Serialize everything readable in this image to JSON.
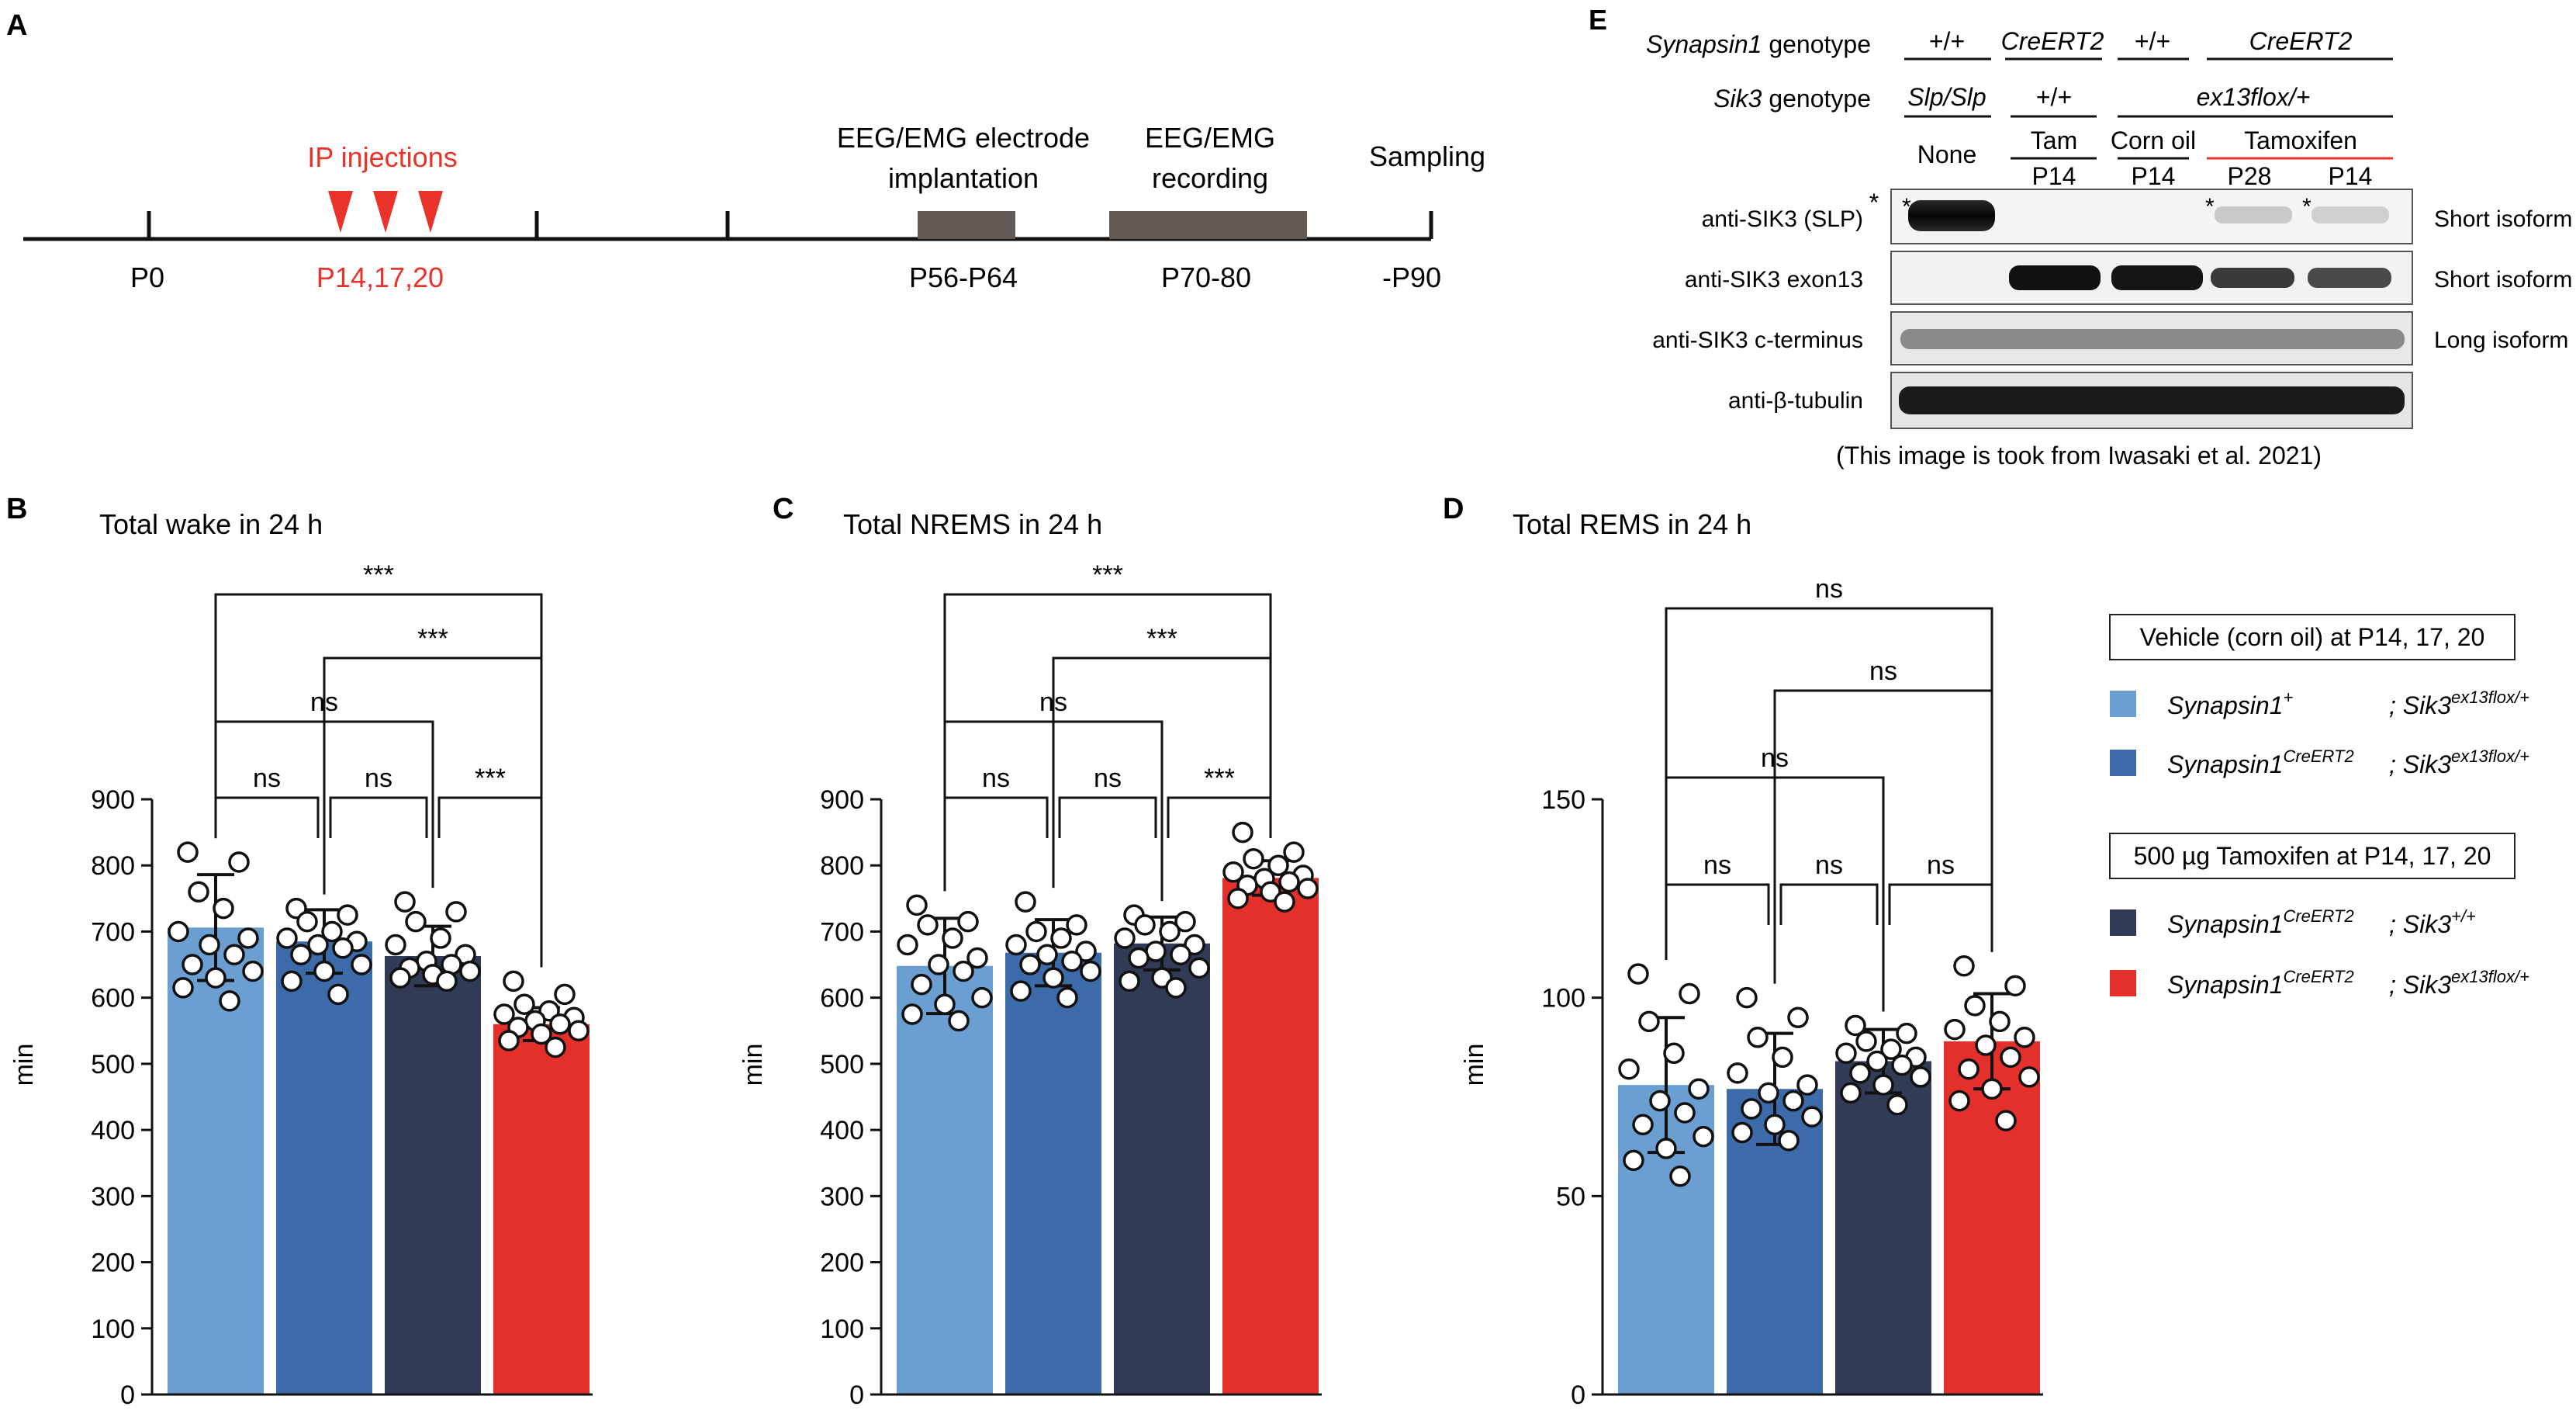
{
  "panel_labels": {
    "a": "A",
    "b": "B",
    "c": "C",
    "d": "D",
    "e": "E"
  },
  "timeline": {
    "ip_label": "IP injections",
    "ip_days": "P14,17,20",
    "p0": "P0",
    "implant_title": [
      "EEG/EMG electrode",
      "implantation"
    ],
    "implant_days": "P56-P64",
    "record_title": [
      "EEG/EMG",
      "recording"
    ],
    "record_days": "P70-80",
    "sampling_title": "Sampling",
    "sampling_days": "-P90",
    "accent_color": "#e8322a"
  },
  "western": {
    "row1_label": "Synapsin1",
    "row1_suffix": " genotype",
    "row2_label": "Sik3",
    "row2_suffix": " genotype",
    "syn_genotypes": [
      "+/+",
      "CreERT2",
      "+/+",
      "CreERT2"
    ],
    "sik_genotypes": [
      "Slp/Slp",
      "+/+",
      "ex13flox/+"
    ],
    "treatments": [
      "None",
      "Tam",
      "Corn oil",
      "Tamoxifen"
    ],
    "ages": [
      "P14",
      "P14",
      "P28",
      "P14"
    ],
    "blots": [
      "anti-SIK3 (SLP)",
      "anti-SIK3 exon13",
      "anti-SIK3 c-terminus",
      "anti-β-tubulin"
    ],
    "isoforms": [
      "Short isoform",
      "Short isoform",
      "Long isoform"
    ],
    "star": "*",
    "credit": "(This image is took from Iwasaki et al. 2021)"
  },
  "legend": {
    "vehicle_box": "Vehicle (corn oil) at P14, 17, 20",
    "tam_box": "500 µg Tamoxifen  at P14, 17, 20",
    "items": [
      {
        "gene1": "Synapsin1",
        "sup1": "+",
        "gene2": "; Sik3",
        "sup2": "ex13flox/+",
        "color": "#6b9fd1"
      },
      {
        "gene1": "Synapsin1",
        "sup1": "CreERT2",
        "gene2": "; Sik3",
        "sup2": "ex13flox/+",
        "color": "#3d6aa8"
      },
      {
        "gene1": "Synapsin1",
        "sup1": "CreERT2",
        "gene2": "; Sik3",
        "sup2": "+/+",
        "color": "#323b56"
      },
      {
        "gene1": "Synapsin1",
        "sup1": "CreERT2",
        "gene2": "; Sik3",
        "sup2": "ex13flox/+",
        "color": "#e3302b"
      }
    ]
  },
  "chart_data": [
    {
      "type": "bar",
      "title": "Total wake in 24 h",
      "ylabel": "min",
      "ylim": [
        0,
        900
      ],
      "yticks": [
        0,
        100,
        200,
        300,
        400,
        500,
        600,
        700,
        800,
        900
      ],
      "colors": [
        "#6b9fd1",
        "#3d6aa8",
        "#323b56",
        "#e3302b"
      ],
      "means": [
        706,
        685,
        663,
        560
      ],
      "sd": [
        80,
        48,
        45,
        25
      ],
      "points": [
        [
          820,
          805,
          760,
          735,
          700,
          690,
          680,
          665,
          650,
          640,
          630,
          615,
          595
        ],
        [
          735,
          725,
          715,
          700,
          690,
          685,
          680,
          675,
          665,
          650,
          640,
          625,
          605
        ],
        [
          745,
          730,
          715,
          690,
          680,
          665,
          655,
          650,
          645,
          640,
          635,
          630,
          625
        ],
        [
          625,
          605,
          590,
          580,
          575,
          570,
          565,
          560,
          555,
          550,
          545,
          535,
          525
        ]
      ],
      "brackets": [
        {
          "from": 0,
          "to": 1,
          "level": 0,
          "label": "ns"
        },
        {
          "from": 1,
          "to": 2,
          "level": 0,
          "label": "ns"
        },
        {
          "from": 2,
          "to": 3,
          "level": 0,
          "label": "***"
        },
        {
          "from": 0,
          "to": 2,
          "level": 1,
          "label": "ns"
        },
        {
          "from": 1,
          "to": 3,
          "level": 2,
          "label": "***"
        },
        {
          "from": 0,
          "to": 3,
          "level": 3,
          "label": "***"
        }
      ]
    },
    {
      "type": "bar",
      "title": "Total NREMS in 24 h",
      "ylabel": "min",
      "ylim": [
        0,
        900
      ],
      "yticks": [
        0,
        100,
        200,
        300,
        400,
        500,
        600,
        700,
        800,
        900
      ],
      "colors": [
        "#6b9fd1",
        "#3d6aa8",
        "#323b56",
        "#e3302b"
      ],
      "means": [
        648,
        668,
        682,
        781
      ],
      "sd": [
        72,
        50,
        40,
        26
      ],
      "points": [
        [
          740,
          715,
          710,
          690,
          680,
          660,
          650,
          640,
          620,
          600,
          590,
          575,
          565
        ],
        [
          745,
          710,
          700,
          690,
          680,
          670,
          665,
          655,
          650,
          640,
          630,
          610,
          600
        ],
        [
          725,
          715,
          710,
          700,
          690,
          680,
          670,
          665,
          660,
          645,
          630,
          625,
          615
        ],
        [
          850,
          820,
          810,
          800,
          790,
          785,
          780,
          775,
          770,
          765,
          760,
          750,
          745
        ]
      ],
      "brackets": [
        {
          "from": 0,
          "to": 1,
          "level": 0,
          "label": "ns"
        },
        {
          "from": 1,
          "to": 2,
          "level": 0,
          "label": "ns"
        },
        {
          "from": 2,
          "to": 3,
          "level": 0,
          "label": "***"
        },
        {
          "from": 0,
          "to": 2,
          "level": 1,
          "label": "ns"
        },
        {
          "from": 1,
          "to": 3,
          "level": 2,
          "label": "***"
        },
        {
          "from": 0,
          "to": 3,
          "level": 3,
          "label": "***"
        }
      ]
    },
    {
      "type": "bar",
      "title": "Total REMS in 24 h",
      "ylabel": "min",
      "ylim": [
        0,
        150
      ],
      "yticks": [
        0,
        50,
        100,
        150
      ],
      "colors": [
        "#6b9fd1",
        "#3d6aa8",
        "#323b56",
        "#e3302b"
      ],
      "means": [
        78,
        77,
        84,
        89
      ],
      "sd": [
        17,
        14,
        8,
        12
      ],
      "points": [
        [
          106,
          101,
          94,
          86,
          82,
          77,
          74,
          71,
          68,
          65,
          62,
          59,
          55
        ],
        [
          100,
          95,
          90,
          85,
          81,
          78,
          76,
          74,
          72,
          70,
          68,
          66,
          64
        ],
        [
          93,
          91,
          89,
          87,
          86,
          85,
          84,
          83,
          81,
          80,
          78,
          76,
          73
        ],
        [
          108,
          103,
          98,
          94,
          92,
          90,
          88,
          85,
          82,
          80,
          77,
          74,
          69
        ]
      ],
      "brackets": [
        {
          "from": 0,
          "to": 1,
          "level": 0,
          "label": "ns"
        },
        {
          "from": 1,
          "to": 2,
          "level": 0,
          "label": "ns"
        },
        {
          "from": 2,
          "to": 3,
          "level": 0,
          "label": "ns"
        },
        {
          "from": 0,
          "to": 2,
          "level": 1,
          "label": "ns"
        },
        {
          "from": 1,
          "to": 3,
          "level": 2,
          "label": "ns"
        },
        {
          "from": 0,
          "to": 3,
          "level": 3,
          "label": "ns"
        }
      ]
    }
  ]
}
